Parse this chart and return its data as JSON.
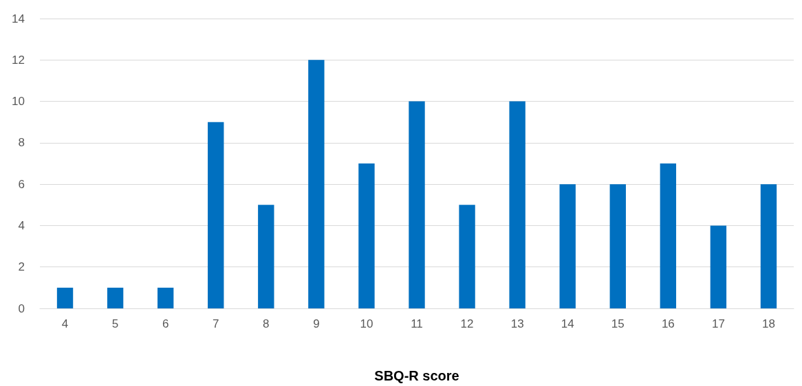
{
  "chart_data": {
    "type": "bar",
    "xlabel": "SBQ-R score",
    "categories": [
      "4",
      "5",
      "6",
      "7",
      "8",
      "9",
      "10",
      "11",
      "12",
      "13",
      "14",
      "15",
      "16",
      "17",
      "18"
    ],
    "values": [
      1,
      1,
      1,
      9,
      5,
      12,
      7,
      10,
      5,
      10,
      6,
      6,
      7,
      4,
      6
    ],
    "color": "#0070c0",
    "ylim": [
      0,
      14
    ],
    "yticks": [
      0,
      2,
      4,
      6,
      8,
      10,
      12,
      14
    ],
    "grid": "y"
  }
}
